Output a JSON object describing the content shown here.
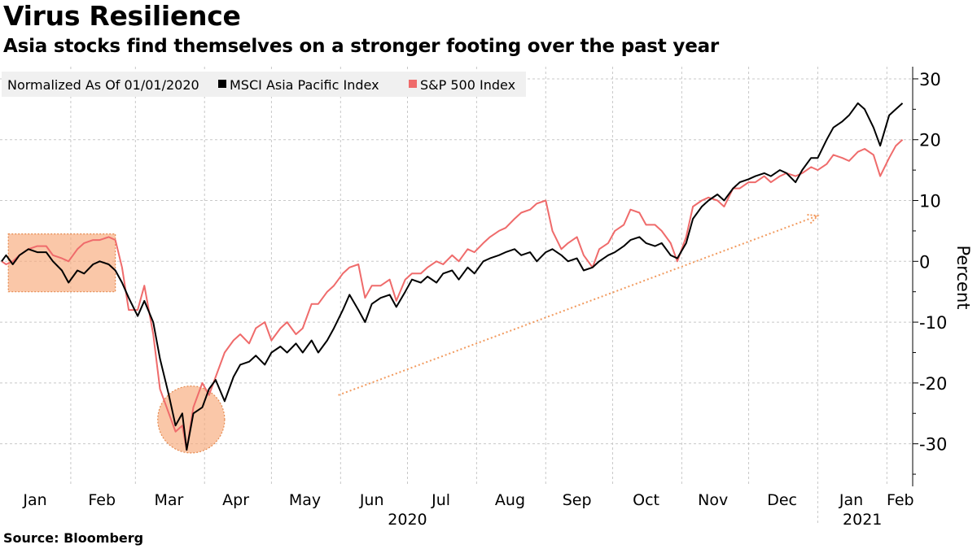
{
  "title": "Virus Resilience",
  "subtitle": "Asia stocks find themselves on a stronger footing over the past year",
  "source": "Source: Bloomberg",
  "colors": {
    "msci": "#000000",
    "sp500": "#ef6b6b",
    "highlight": "#f7a97a",
    "arrow": "#f29a5e"
  },
  "chart_data": {
    "type": "line",
    "legend": {
      "placement": "top-left",
      "note": "Normalized As Of 01/01/2020",
      "entries": [
        "MSCI Asia Pacific Index",
        "S&P 500 Index"
      ]
    },
    "ylabel": "Percent",
    "ylim": [
      -37,
      32
    ],
    "yticks": [
      30,
      20,
      10,
      0,
      -10,
      -20,
      -30
    ],
    "ytick_labels": [
      "30",
      "20",
      "10",
      "0",
      "-10",
      "-20",
      "-30"
    ],
    "grid": true,
    "xlim": [
      "2020-01-01",
      "2021-02-10"
    ],
    "x_month_labels": [
      {
        "label": "Jan",
        "date": "2020-01-16"
      },
      {
        "label": "Feb",
        "date": "2020-02-15"
      },
      {
        "label": "Mar",
        "date": "2020-03-16"
      },
      {
        "label": "Apr",
        "date": "2020-04-15"
      },
      {
        "label": "May",
        "date": "2020-05-16"
      },
      {
        "label": "Jun",
        "date": "2020-06-15"
      },
      {
        "label": "Jul",
        "date": "2020-07-16"
      },
      {
        "label": "Aug",
        "date": "2020-08-16"
      },
      {
        "label": "Sep",
        "date": "2020-09-15"
      },
      {
        "label": "Oct",
        "date": "2020-10-16"
      },
      {
        "label": "Nov",
        "date": "2020-11-15"
      },
      {
        "label": "Dec",
        "date": "2020-12-16"
      },
      {
        "label": "Jan",
        "date": "2021-01-16"
      },
      {
        "label": "Feb",
        "date": "2021-02-07"
      }
    ],
    "x_month_bounds": [
      "2020-01-01",
      "2020-02-01",
      "2020-03-01",
      "2020-04-01",
      "2020-05-01",
      "2020-06-01",
      "2020-07-01",
      "2020-08-01",
      "2020-09-01",
      "2020-10-01",
      "2020-11-01",
      "2020-12-01",
      "2021-01-01",
      "2021-02-01"
    ],
    "x_year_labels": [
      {
        "label": "2020",
        "date": "2020-07-01"
      },
      {
        "label": "2021",
        "date": "2021-01-21"
      }
    ],
    "series": [
      {
        "name": "MSCI Asia Pacific Index",
        "color": "#000000",
        "points": [
          [
            "2020-01-01",
            0
          ],
          [
            "2020-01-03",
            1
          ],
          [
            "2020-01-06",
            -0.5
          ],
          [
            "2020-01-09",
            1
          ],
          [
            "2020-01-13",
            2
          ],
          [
            "2020-01-17",
            1.5
          ],
          [
            "2020-01-21",
            1.5
          ],
          [
            "2020-01-24",
            0
          ],
          [
            "2020-01-28",
            -1.5
          ],
          [
            "2020-01-31",
            -3.5
          ],
          [
            "2020-02-04",
            -1.5
          ],
          [
            "2020-02-07",
            -2
          ],
          [
            "2020-02-11",
            -0.5
          ],
          [
            "2020-02-14",
            0
          ],
          [
            "2020-02-18",
            -0.5
          ],
          [
            "2020-02-21",
            -1.5
          ],
          [
            "2020-02-24",
            -3.5
          ],
          [
            "2020-02-27",
            -6
          ],
          [
            "2020-03-02",
            -9
          ],
          [
            "2020-03-05",
            -6.5
          ],
          [
            "2020-03-09",
            -10
          ],
          [
            "2020-03-12",
            -16
          ],
          [
            "2020-03-16",
            -22
          ],
          [
            "2020-03-19",
            -27
          ],
          [
            "2020-03-22",
            -25
          ],
          [
            "2020-03-24",
            -31
          ],
          [
            "2020-03-27",
            -25
          ],
          [
            "2020-03-31",
            -24
          ],
          [
            "2020-04-03",
            -21
          ],
          [
            "2020-04-06",
            -19.5
          ],
          [
            "2020-04-10",
            -23
          ],
          [
            "2020-04-14",
            -19
          ],
          [
            "2020-04-17",
            -17
          ],
          [
            "2020-04-21",
            -16.5
          ],
          [
            "2020-04-24",
            -15.5
          ],
          [
            "2020-04-28",
            -17
          ],
          [
            "2020-05-01",
            -15
          ],
          [
            "2020-05-05",
            -14
          ],
          [
            "2020-05-08",
            -15
          ],
          [
            "2020-05-12",
            -13.5
          ],
          [
            "2020-05-15",
            -15
          ],
          [
            "2020-05-19",
            -13
          ],
          [
            "2020-05-22",
            -15
          ],
          [
            "2020-05-26",
            -13
          ],
          [
            "2020-05-29",
            -11
          ],
          [
            "2020-06-02",
            -8
          ],
          [
            "2020-06-05",
            -5.5
          ],
          [
            "2020-06-09",
            -8
          ],
          [
            "2020-06-12",
            -10
          ],
          [
            "2020-06-15",
            -7
          ],
          [
            "2020-06-19",
            -6
          ],
          [
            "2020-06-23",
            -5.5
          ],
          [
            "2020-06-26",
            -7.5
          ],
          [
            "2020-06-30",
            -5
          ],
          [
            "2020-07-03",
            -3
          ],
          [
            "2020-07-07",
            -3.5
          ],
          [
            "2020-07-10",
            -2.5
          ],
          [
            "2020-07-14",
            -3.5
          ],
          [
            "2020-07-17",
            -2
          ],
          [
            "2020-07-21",
            -1.5
          ],
          [
            "2020-07-24",
            -3
          ],
          [
            "2020-07-28",
            -1
          ],
          [
            "2020-07-31",
            -2
          ],
          [
            "2020-08-04",
            0
          ],
          [
            "2020-08-07",
            0.5
          ],
          [
            "2020-08-11",
            1
          ],
          [
            "2020-08-14",
            1.5
          ],
          [
            "2020-08-18",
            2
          ],
          [
            "2020-08-21",
            1
          ],
          [
            "2020-08-25",
            1.5
          ],
          [
            "2020-08-28",
            0
          ],
          [
            "2020-09-01",
            1.5
          ],
          [
            "2020-09-04",
            2
          ],
          [
            "2020-09-08",
            1
          ],
          [
            "2020-09-11",
            0
          ],
          [
            "2020-09-15",
            0.5
          ],
          [
            "2020-09-18",
            -1.5
          ],
          [
            "2020-09-22",
            -1
          ],
          [
            "2020-09-25",
            0
          ],
          [
            "2020-09-29",
            1
          ],
          [
            "2020-10-02",
            1.5
          ],
          [
            "2020-10-06",
            2.5
          ],
          [
            "2020-10-09",
            3.5
          ],
          [
            "2020-10-13",
            4
          ],
          [
            "2020-10-16",
            3
          ],
          [
            "2020-10-20",
            2.5
          ],
          [
            "2020-10-23",
            3
          ],
          [
            "2020-10-27",
            1
          ],
          [
            "2020-10-30",
            0.5
          ],
          [
            "2020-11-03",
            3
          ],
          [
            "2020-11-06",
            7
          ],
          [
            "2020-11-10",
            9
          ],
          [
            "2020-11-13",
            10
          ],
          [
            "2020-11-17",
            11
          ],
          [
            "2020-11-20",
            10
          ],
          [
            "2020-11-24",
            12
          ],
          [
            "2020-11-27",
            13
          ],
          [
            "2020-12-01",
            13.5
          ],
          [
            "2020-12-04",
            14
          ],
          [
            "2020-12-08",
            14.5
          ],
          [
            "2020-12-11",
            14
          ],
          [
            "2020-12-15",
            15
          ],
          [
            "2020-12-18",
            14.5
          ],
          [
            "2020-12-22",
            13
          ],
          [
            "2020-12-25",
            15
          ],
          [
            "2020-12-29",
            17
          ],
          [
            "2021-01-01",
            17
          ],
          [
            "2021-01-05",
            20
          ],
          [
            "2021-01-08",
            22
          ],
          [
            "2021-01-12",
            23
          ],
          [
            "2021-01-15",
            24
          ],
          [
            "2021-01-19",
            26
          ],
          [
            "2021-01-22",
            25
          ],
          [
            "2021-01-26",
            22
          ],
          [
            "2021-01-29",
            19
          ],
          [
            "2021-02-02",
            24
          ],
          [
            "2021-02-05",
            25
          ],
          [
            "2021-02-08",
            26
          ]
        ]
      },
      {
        "name": "S&P 500 Index",
        "color": "#ef6b6b",
        "points": [
          [
            "2020-01-01",
            0
          ],
          [
            "2020-01-03",
            -0.5
          ],
          [
            "2020-01-06",
            0
          ],
          [
            "2020-01-09",
            1
          ],
          [
            "2020-01-13",
            2
          ],
          [
            "2020-01-17",
            2.5
          ],
          [
            "2020-01-21",
            2.5
          ],
          [
            "2020-01-24",
            1
          ],
          [
            "2020-01-28",
            0.5
          ],
          [
            "2020-01-31",
            0
          ],
          [
            "2020-02-04",
            2
          ],
          [
            "2020-02-07",
            3
          ],
          [
            "2020-02-11",
            3.5
          ],
          [
            "2020-02-14",
            3.5
          ],
          [
            "2020-02-18",
            4
          ],
          [
            "2020-02-21",
            3.5
          ],
          [
            "2020-02-24",
            -1
          ],
          [
            "2020-02-27",
            -8
          ],
          [
            "2020-03-02",
            -8
          ],
          [
            "2020-03-05",
            -4
          ],
          [
            "2020-03-09",
            -12
          ],
          [
            "2020-03-12",
            -21
          ],
          [
            "2020-03-16",
            -25
          ],
          [
            "2020-03-19",
            -28
          ],
          [
            "2020-03-22",
            -27
          ],
          [
            "2020-03-24",
            -31
          ],
          [
            "2020-03-27",
            -24
          ],
          [
            "2020-03-31",
            -20
          ],
          [
            "2020-04-03",
            -22
          ],
          [
            "2020-04-06",
            -19
          ],
          [
            "2020-04-10",
            -15
          ],
          [
            "2020-04-14",
            -13
          ],
          [
            "2020-04-17",
            -12
          ],
          [
            "2020-04-21",
            -13.5
          ],
          [
            "2020-04-24",
            -11
          ],
          [
            "2020-04-28",
            -10
          ],
          [
            "2020-05-01",
            -13
          ],
          [
            "2020-05-05",
            -11
          ],
          [
            "2020-05-08",
            -10
          ],
          [
            "2020-05-12",
            -12
          ],
          [
            "2020-05-15",
            -11
          ],
          [
            "2020-05-19",
            -7
          ],
          [
            "2020-05-22",
            -7
          ],
          [
            "2020-05-26",
            -5
          ],
          [
            "2020-05-29",
            -4
          ],
          [
            "2020-06-02",
            -2
          ],
          [
            "2020-06-05",
            -1
          ],
          [
            "2020-06-09",
            -0.5
          ],
          [
            "2020-06-12",
            -6
          ],
          [
            "2020-06-15",
            -4
          ],
          [
            "2020-06-19",
            -4
          ],
          [
            "2020-06-23",
            -3
          ],
          [
            "2020-06-26",
            -6.5
          ],
          [
            "2020-06-30",
            -3
          ],
          [
            "2020-07-03",
            -2
          ],
          [
            "2020-07-07",
            -2
          ],
          [
            "2020-07-10",
            -1
          ],
          [
            "2020-07-14",
            0
          ],
          [
            "2020-07-17",
            -0.5
          ],
          [
            "2020-07-21",
            1
          ],
          [
            "2020-07-24",
            0
          ],
          [
            "2020-07-28",
            2
          ],
          [
            "2020-07-31",
            1.5
          ],
          [
            "2020-08-04",
            3
          ],
          [
            "2020-08-07",
            4
          ],
          [
            "2020-08-11",
            5
          ],
          [
            "2020-08-14",
            5.5
          ],
          [
            "2020-08-18",
            7
          ],
          [
            "2020-08-21",
            8
          ],
          [
            "2020-08-25",
            8.5
          ],
          [
            "2020-08-28",
            9.5
          ],
          [
            "2020-09-01",
            10
          ],
          [
            "2020-09-04",
            5
          ],
          [
            "2020-09-08",
            2
          ],
          [
            "2020-09-11",
            3
          ],
          [
            "2020-09-15",
            4
          ],
          [
            "2020-09-18",
            1
          ],
          [
            "2020-09-22",
            -1
          ],
          [
            "2020-09-25",
            2
          ],
          [
            "2020-09-29",
            3
          ],
          [
            "2020-10-02",
            5
          ],
          [
            "2020-10-06",
            6
          ],
          [
            "2020-10-09",
            8.5
          ],
          [
            "2020-10-13",
            8
          ],
          [
            "2020-10-16",
            6
          ],
          [
            "2020-10-20",
            6
          ],
          [
            "2020-10-23",
            5
          ],
          [
            "2020-10-27",
            3
          ],
          [
            "2020-10-30",
            0
          ],
          [
            "2020-11-03",
            4
          ],
          [
            "2020-11-06",
            9
          ],
          [
            "2020-11-10",
            10
          ],
          [
            "2020-11-13",
            10.5
          ],
          [
            "2020-11-17",
            10
          ],
          [
            "2020-11-20",
            9
          ],
          [
            "2020-11-24",
            12
          ],
          [
            "2020-11-27",
            12
          ],
          [
            "2020-12-01",
            13
          ],
          [
            "2020-12-04",
            13
          ],
          [
            "2020-12-08",
            14
          ],
          [
            "2020-12-11",
            13
          ],
          [
            "2020-12-15",
            14
          ],
          [
            "2020-12-18",
            14.5
          ],
          [
            "2020-12-22",
            14
          ],
          [
            "2020-12-25",
            14.5
          ],
          [
            "2020-12-29",
            15.5
          ],
          [
            "2021-01-01",
            15
          ],
          [
            "2021-01-05",
            16
          ],
          [
            "2021-01-08",
            17.5
          ],
          [
            "2021-01-12",
            17
          ],
          [
            "2021-01-15",
            16.5
          ],
          [
            "2021-01-19",
            18
          ],
          [
            "2021-01-22",
            18.5
          ],
          [
            "2021-01-26",
            17.5
          ],
          [
            "2021-01-29",
            14
          ],
          [
            "2021-02-02",
            17
          ],
          [
            "2021-02-05",
            19
          ],
          [
            "2021-02-08",
            20
          ]
        ]
      }
    ],
    "annotations": [
      {
        "type": "rect",
        "x": [
          "2020-01-04",
          "2020-02-21"
        ],
        "y": [
          -5,
          4.5
        ]
      },
      {
        "type": "ellipse",
        "x": [
          "2020-03-11",
          "2020-04-10"
        ],
        "y": [
          -31.5,
          -20.5
        ]
      },
      {
        "type": "arrow",
        "from": [
          "2020-05-31",
          -22
        ],
        "to": [
          "2021-01-01",
          7.5
        ]
      }
    ]
  }
}
